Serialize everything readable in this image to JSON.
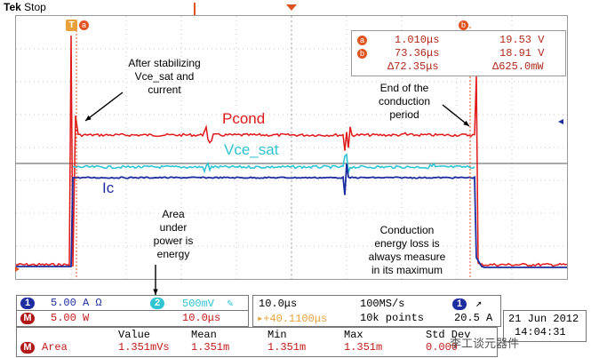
{
  "header": {
    "brand": "Tek",
    "state": "Stop"
  },
  "markers": {
    "trigger": "T",
    "cursor_a": "a",
    "cursor_b": "b"
  },
  "cursor_readout": {
    "a_time": "1.010μs",
    "a_value": "19.53 V",
    "b_time": "73.36μs",
    "b_value": "18.91 V",
    "delta_time": "Δ72.35μs",
    "delta_value": "Δ625.0mW"
  },
  "annotations": {
    "stabilizing": "After stabilizing\nVce_sat and\ncurrent",
    "end_conduction": "End of the\nconduction\nperiod",
    "area": "Area\nunder\npower is\nenergy",
    "loss": "Conduction\nenergy loss is\nalways measure\nin its maximum"
  },
  "trace_labels": {
    "pcond": "Pcond",
    "vce_sat": "Vce_sat",
    "ic": "Ic"
  },
  "channels": {
    "ch1": {
      "num": "1",
      "scale": "5.00 A",
      "suffix": "Ω"
    },
    "ch2": {
      "num": "2",
      "scale": "500mV",
      "suffix": "✎"
    },
    "math": {
      "num": "M",
      "scale": "5.00 W",
      "time": "10.0μs"
    }
  },
  "timebase": {
    "horizontal": "10.0μs",
    "sample_rate": "100MS/s",
    "trigger_delay": "▸+40.1100μs",
    "record": "10k points",
    "trigger_channel": "1",
    "trigger_slope": "↗",
    "trigger_level": "20.5 A"
  },
  "measurement": {
    "headers": [
      "Value",
      "Mean",
      "Min",
      "Max",
      "Std Dev"
    ],
    "label": "Area",
    "values": [
      "1.351mVs",
      "1.351m",
      "1.351m",
      "1.351m",
      "0.000"
    ]
  },
  "datetime": {
    "date": "21 Jun 2012",
    "time": "14:04:31"
  },
  "watermark": "李工谈元器件",
  "colors": {
    "pcond": "#e01818",
    "vce": "#2ec4d2",
    "ic": "#1d2c9e",
    "orange": "#e0531f"
  }
}
